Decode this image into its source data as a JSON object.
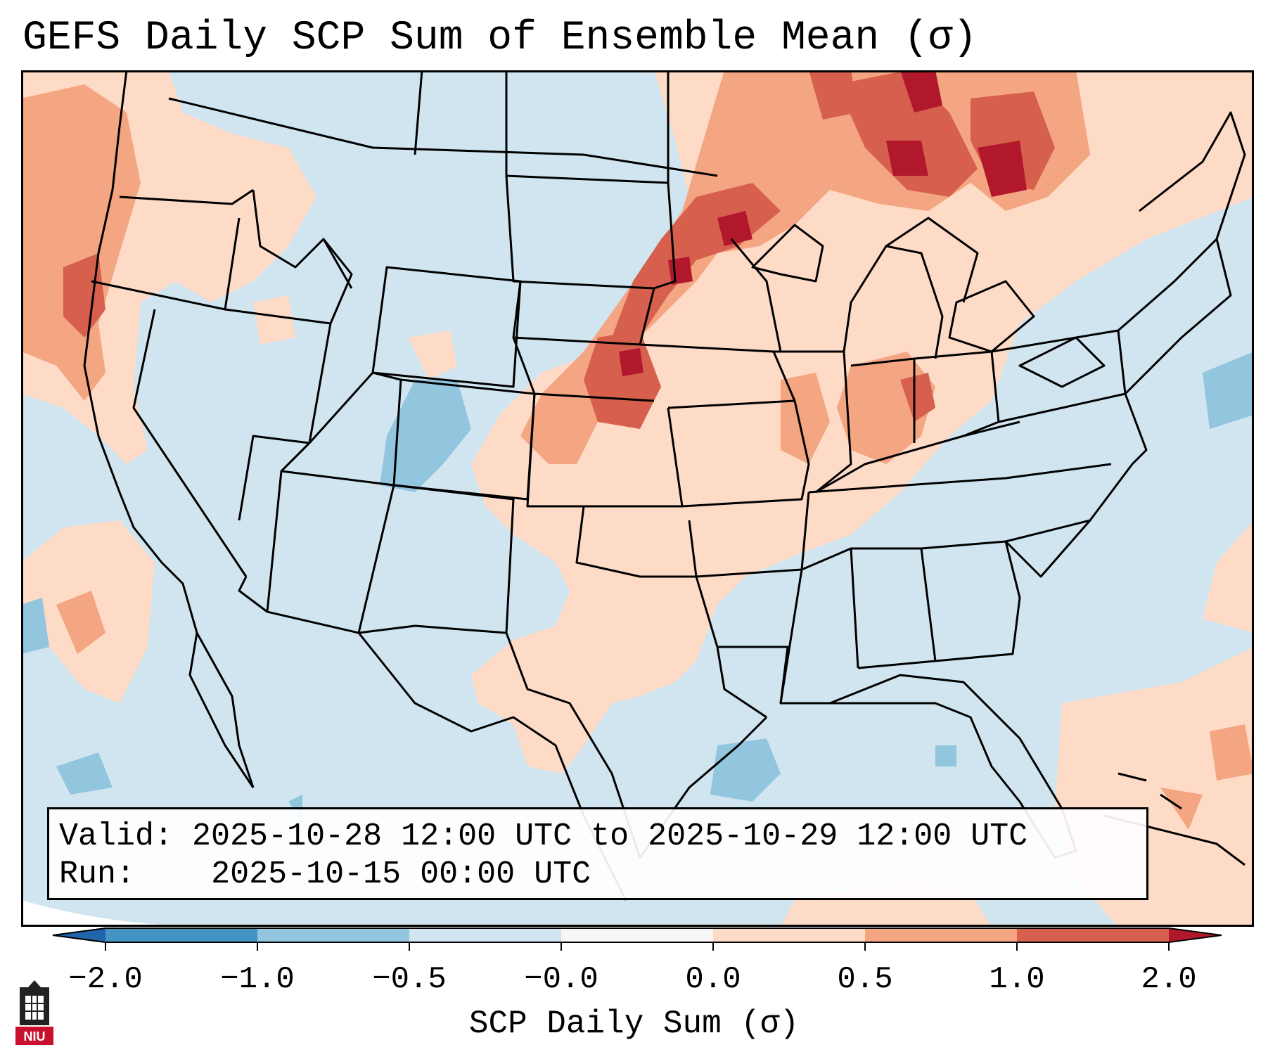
{
  "title": "GEFS Daily SCP Sum of Ensemble Mean (σ)",
  "info": {
    "valid_label": "Valid:",
    "valid_value": "2025-10-28 12:00 UTC to 2025-10-29 12:00 UTC",
    "run_label": "Run:",
    "run_value": "2025-10-15 00:00 UTC"
  },
  "colorbar": {
    "label": "SCP Daily Sum (σ)",
    "ticks": [
      "−2.0",
      "−1.0",
      "−0.5",
      "−0.0",
      "0.0",
      "0.5",
      "1.0",
      "2.0"
    ],
    "bins": [
      {
        "range": "< -2.0",
        "color": "#2166ac"
      },
      {
        "range": "-2.0 to -1.0",
        "color": "#4393c3"
      },
      {
        "range": "-1.0 to -0.5",
        "color": "#92c5de"
      },
      {
        "range": "-0.5 to -0.0",
        "color": "#d1e5f0"
      },
      {
        "range": "-0.0 to 0.0",
        "color": "#f7f7f7"
      },
      {
        "range": "0.0 to 0.5",
        "color": "#fddbc7"
      },
      {
        "range": "0.5 to 1.0",
        "color": "#f4a582"
      },
      {
        "range": "1.0 to 2.0",
        "color": "#d6604d"
      },
      {
        "range": "> 2.0",
        "color": "#b2182b"
      }
    ]
  },
  "map": {
    "region": "Contiguous United States",
    "background_color": "#d1e5f0",
    "state_border_color": "#000000"
  },
  "logo": {
    "text": "NIU",
    "icon": "niu-logo-icon"
  }
}
